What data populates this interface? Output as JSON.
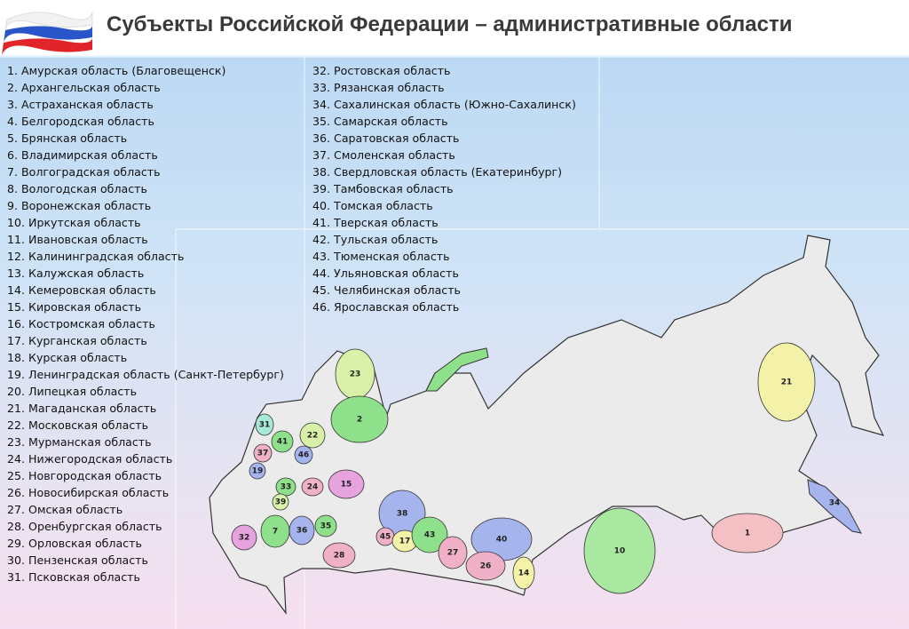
{
  "header": {
    "title": "Субъекты Российской Федерации – административные области"
  },
  "list_left": [
    "1. Амурская область (Благовещенск)",
    "2. Архангельская область",
    "3. Астраханская область",
    "4. Белгородская область",
    "5. Брянская область",
    "6. Владимирская область",
    "7. Волгоградская область",
    "8. Вологодская область",
    "9. Воронежская область",
    "10. Иркутская область",
    "11. Ивановская область",
    "12. Калининградская область",
    "13. Калужская область",
    "14. Кемеровская область",
    "15. Кировская область",
    "16. Костромская область",
    "17. Курганская область",
    "18. Курская область",
    "19. Ленинградская область (Санкт-Петербург)",
    "20. Липецкая область",
    "21. Магаданская область",
    "22. Московская область",
    "23. Мурманская область",
    "24. Нижегородская область",
    "25. Новгородская область",
    "26. Новосибирская область",
    "27. Омская область",
    "28. Оренбургская область",
    "29. Орловская область",
    "30. Пензенская область",
    "31. Псковская область"
  ],
  "list_right": [
    "32. Ростовская область",
    "33. Рязанская область",
    "34. Сахалинская область (Южно-Сахалинск)",
    "35. Самарская область",
    "36. Саратовская область",
    "37. Смоленская область",
    "38. Свердловская область (Екатеринбург)",
    "39. Тамбовская область",
    "40. Томская область",
    "41. Тверская область",
    "42. Тульская область",
    "43. Тюменская область",
    "44. Ульяновская область",
    "45. Челябинская область",
    "46. Ярославская область"
  ],
  "map_labels": [
    "23",
    "2",
    "21",
    "31",
    "41",
    "46",
    "37",
    "22",
    "24",
    "15",
    "19",
    "33",
    "39",
    "7",
    "36",
    "35",
    "32",
    "28",
    "38",
    "45",
    "17",
    "43",
    "27",
    "40",
    "26",
    "14",
    "10",
    "1",
    "34"
  ]
}
